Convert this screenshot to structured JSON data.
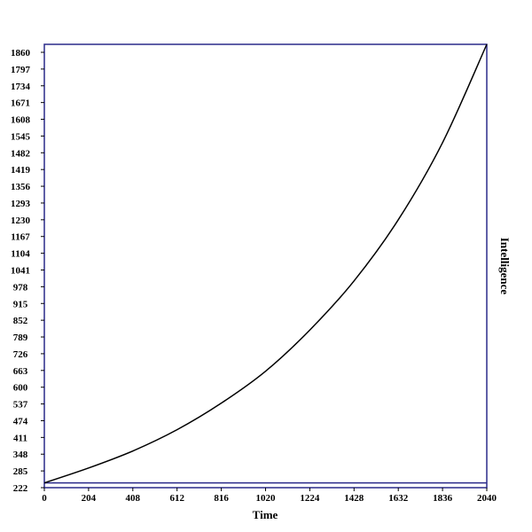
{
  "chart_data": {
    "type": "line",
    "title": "",
    "xlabel": "Time",
    "ylabel": "Intelligence",
    "xlim": [
      0,
      2040
    ],
    "ylim": [
      222,
      1890
    ],
    "xticks": [
      0,
      204,
      408,
      612,
      816,
      1020,
      1224,
      1428,
      1632,
      1836,
      2040
    ],
    "yticks": [
      222,
      285,
      348,
      411,
      474,
      537,
      600,
      663,
      726,
      789,
      852,
      915,
      978,
      1041,
      1104,
      1167,
      1230,
      1293,
      1356,
      1419,
      1482,
      1545,
      1608,
      1671,
      1734,
      1797,
      1860
    ],
    "grid": false,
    "legend": "none",
    "colors": {
      "frame": "#2a2a8a",
      "curve": "#000000",
      "baseline": "#2a2a8a"
    },
    "baseline_y": 240,
    "series": [
      {
        "x": [
          0,
          204,
          408,
          612,
          816,
          1020,
          1224,
          1428,
          1632,
          1836,
          2040
        ],
        "y": [
          240,
          296,
          360,
          440,
          540,
          660,
          815,
          1000,
          1230,
          1520,
          1890
        ]
      }
    ]
  }
}
